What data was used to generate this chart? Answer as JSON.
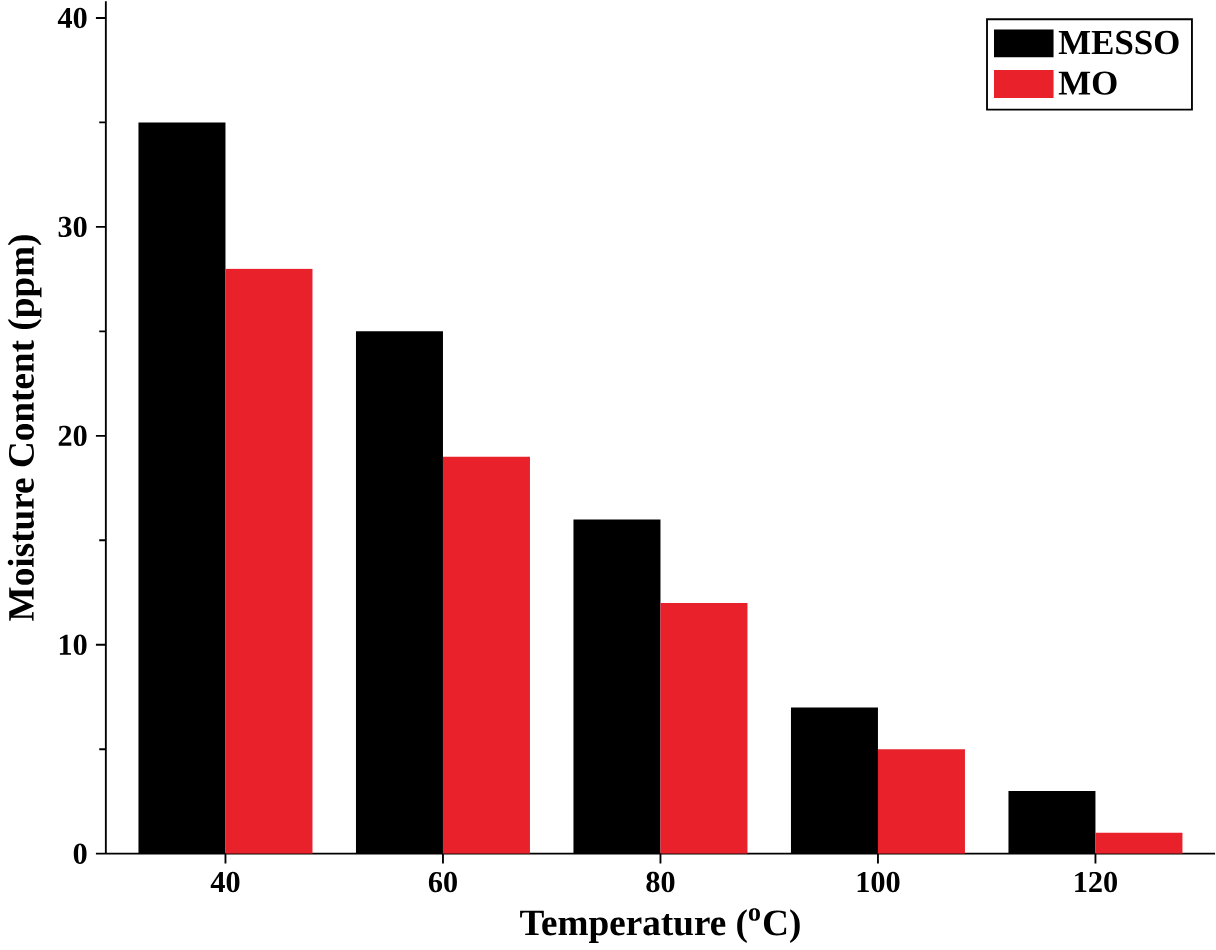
{
  "chart_data": {
    "type": "bar",
    "xlabel": "Temperature ($^{o}$C)",
    "ylabel": "Moisture Content (ppm)",
    "categories": [
      "40",
      "60",
      "80",
      "100",
      "120"
    ],
    "series": [
      {
        "name": "MESSO",
        "color": "#000000",
        "values": [
          35,
          25,
          16,
          7,
          3
        ]
      },
      {
        "name": "MO",
        "color": "#e8212b",
        "values": [
          28,
          19,
          12,
          5,
          1
        ]
      }
    ],
    "ylim": [
      0,
      40
    ],
    "yticks": [
      0,
      10,
      20,
      30,
      40
    ],
    "legend": "top right",
    "grid": false
  }
}
